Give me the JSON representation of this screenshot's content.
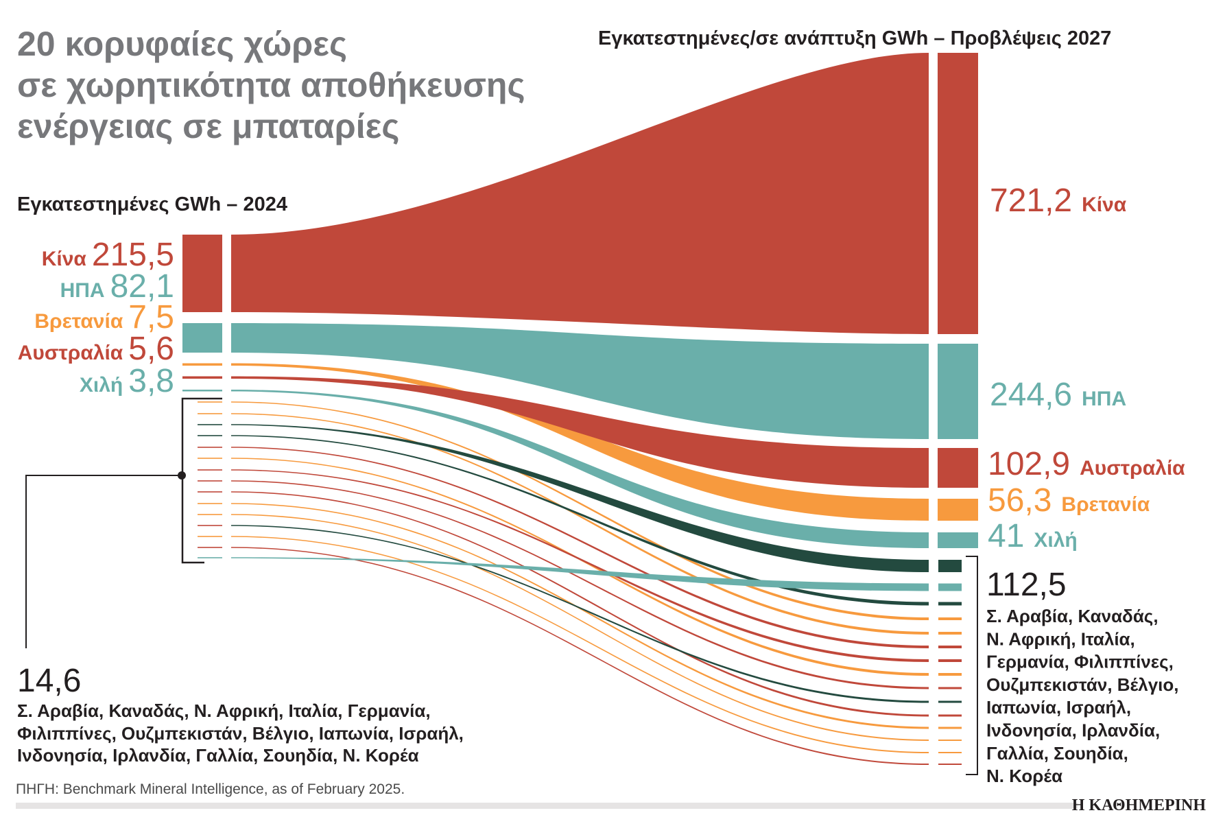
{
  "title_lines": [
    "20 κορυφαίες χώρες",
    "σε χωρητικότητα αποθήκευσης",
    "ενέργειας σε μπαταρίες"
  ],
  "colors": {
    "china": "#c0483a",
    "usa": "#6aafaa",
    "britain": "#f79a3e",
    "australia": "#c0483a",
    "chile": "#6aafaa",
    "dark_green": "#234a3f",
    "title_gray": "#77787b"
  },
  "chart_data": {
    "type": "sankey",
    "left_heading": "Εγκατεστημένες GWh – 2024",
    "right_heading": "Εγκατεστημένες/σε ανάπτυξη GWh – Προβλέψεις 2027",
    "left": [
      {
        "name": "Κίνα",
        "value": "215,5"
      },
      {
        "name": "ΗΠΑ",
        "value": "82,1"
      },
      {
        "name": "Βρετανία",
        "value": "7,5"
      },
      {
        "name": "Αυστραλία",
        "value": "5,6"
      },
      {
        "name": "Χιλή",
        "value": "3,8"
      }
    ],
    "right": [
      {
        "name": "Κίνα",
        "value": "721,2"
      },
      {
        "name": "ΗΠΑ",
        "value": "244,6"
      },
      {
        "name": "Αυστραλία",
        "value": "102,9"
      },
      {
        "name": "Βρετανία",
        "value": "56,3"
      },
      {
        "name": "Χιλή",
        "value": "41"
      }
    ],
    "left_group": {
      "value": "14,6",
      "lines": [
        "Σ. Αραβία, Καναδάς, Ν. Αφρική, Ιταλία, Γερμανία,",
        "Φιλιππίνες, Ουζμπεκιστάν, Βέλγιο, Ιαπωνία, Ισραήλ,",
        "Ινδονησία, Ιρλανδία, Γαλλία, Σουηδία, Ν. Κορέα"
      ]
    },
    "right_group": {
      "value": "112,5",
      "lines": [
        "Σ. Αραβία, Καναδάς,",
        "Ν. Αφρική, Ιταλία,",
        "Γερμανία, Φιλιππίνες,",
        "Ουζμπεκιστάν, Βέλγιο,",
        "Ιαπωνία, Ισραήλ,",
        "Ινδονησία, Ιρλανδία,",
        "Γαλλία, Σουηδία,",
        "Ν. Κορέα"
      ]
    }
  },
  "source": "ΠΗΓΗ: Benchmark Mineral Intelligence, as of February 2025.",
  "brand": "Η ΚΑΘΗΜΕΡΙΝΗ"
}
